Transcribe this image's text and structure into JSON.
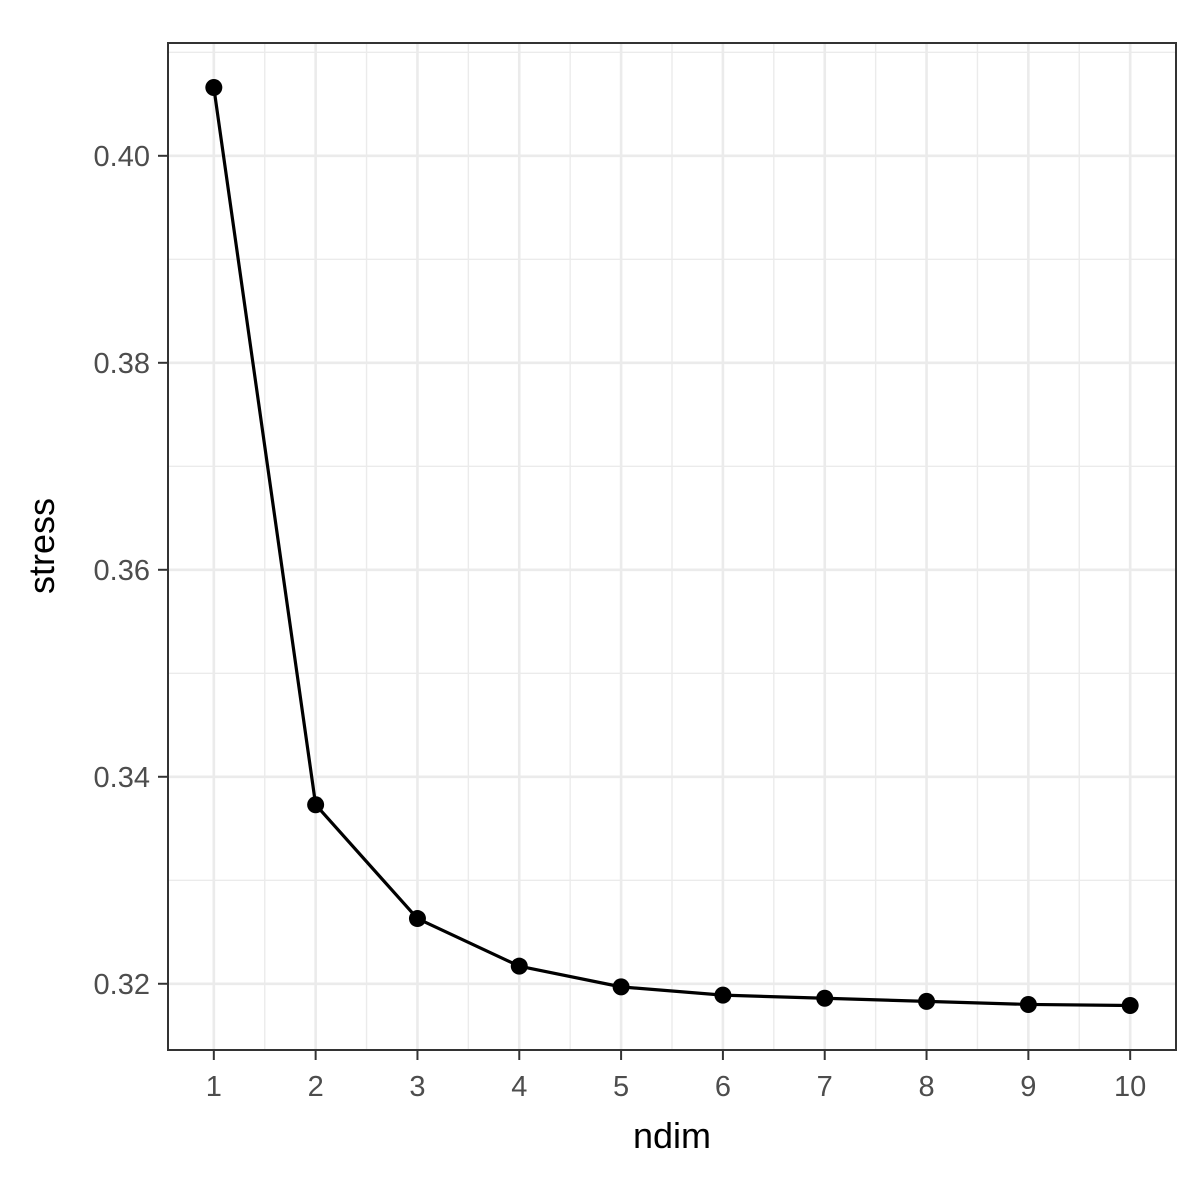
{
  "chart_data": {
    "type": "line",
    "xlabel": "ndim",
    "ylabel": "stress",
    "x": [
      1,
      2,
      3,
      4,
      5,
      6,
      7,
      8,
      9,
      10
    ],
    "series": [
      {
        "values": [
          0.4066,
          0.3373,
          0.3263,
          0.3217,
          0.3197,
          0.3189,
          0.3186,
          0.3183,
          0.318,
          0.3179
        ]
      }
    ],
    "xlim": [
      0.55,
      10.45
    ],
    "ylim": [
      0.3136,
      0.4109
    ],
    "x_ticks": [
      1,
      2,
      3,
      4,
      5,
      6,
      7,
      8,
      9,
      10
    ],
    "x_tick_labels": [
      "1",
      "2",
      "3",
      "4",
      "5",
      "6",
      "7",
      "8",
      "9",
      "10"
    ],
    "y_ticks": [
      0.32,
      0.34,
      0.36,
      0.38,
      0.4
    ],
    "y_tick_labels": [
      "0.32",
      "0.34",
      "0.36",
      "0.38",
      "0.40"
    ],
    "grid": true,
    "legend": "none",
    "colors": {
      "line": "#000000",
      "points": "#000000",
      "grid": "#ebebeb",
      "panel_border": "#333333"
    }
  }
}
